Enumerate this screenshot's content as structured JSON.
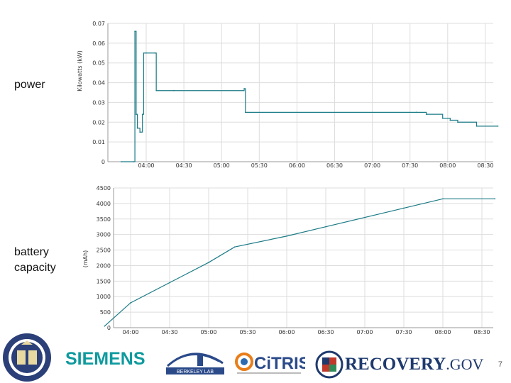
{
  "labels": {
    "power": "power",
    "battery_line1": "battery",
    "battery_line2": "capacity"
  },
  "slide_number": "7",
  "colors": {
    "line": "#1a7a86",
    "grid": "#dddddd",
    "axis": "#999999"
  },
  "logos": {
    "siemens": "SIEMENS",
    "berkeley_lab": "BERKELEY LAB",
    "citris": "CiTRIS",
    "recovery": "RECOVERY",
    "recovery_suffix": ".GOV"
  },
  "chart_data": [
    {
      "type": "line",
      "title": "",
      "xlabel": "",
      "ylabel": "Kilowatts (kW)",
      "ylim": [
        0,
        0.07
      ],
      "yticks": [
        "0",
        "0.01",
        "0.02",
        "0.03",
        "0.04",
        "0.05",
        "0.06",
        "0.07"
      ],
      "xticks": [
        "04:00",
        "04:30",
        "05:00",
        "05:30",
        "06:00",
        "06:30",
        "07:00",
        "07:30",
        "08:00",
        "08:30"
      ],
      "series": [
        {
          "name": "power",
          "x": [
            "03:40",
            "03:50",
            "03:51",
            "03:52",
            "03:53",
            "03:55",
            "03:57",
            "03:58",
            "04:00",
            "04:07",
            "04:08",
            "04:22",
            "05:18",
            "05:19",
            "07:35",
            "07:43",
            "07:56",
            "08:02",
            "08:08",
            "08:23",
            "08:40"
          ],
          "values": [
            0,
            0,
            0.066,
            0.024,
            0.017,
            0.015,
            0.024,
            0.055,
            0.055,
            0.055,
            0.036,
            0.036,
            0.037,
            0.025,
            0.025,
            0.024,
            0.022,
            0.021,
            0.02,
            0.018,
            0.018
          ]
        }
      ]
    },
    {
      "type": "line",
      "title": "",
      "xlabel": "",
      "ylabel": "(mAh)",
      "ylim": [
        0,
        4500
      ],
      "yticks": [
        "0",
        "500",
        "1000",
        "1500",
        "2000",
        "2500",
        "3000",
        "3500",
        "4000",
        "4500"
      ],
      "xticks": [
        "04:00",
        "04:30",
        "05:00",
        "05:30",
        "06:00",
        "06:30",
        "07:00",
        "07:30",
        "08:00",
        "08:30"
      ],
      "series": [
        {
          "name": "battery capacity",
          "x": [
            "03:40",
            "04:00",
            "04:30",
            "05:00",
            "05:20",
            "06:00",
            "06:30",
            "07:00",
            "07:30",
            "08:00",
            "08:40"
          ],
          "values": [
            50,
            800,
            1450,
            2100,
            2600,
            2950,
            3250,
            3550,
            3850,
            4150,
            4150
          ]
        }
      ]
    }
  ]
}
